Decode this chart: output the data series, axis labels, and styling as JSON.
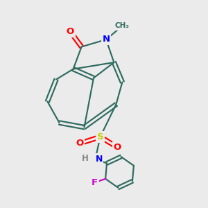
{
  "background_color": "#ebebeb",
  "bond_color": "#2d6b5e",
  "atom_colors": {
    "O": "#ff0000",
    "N": "#0000ff",
    "S": "#cccc00",
    "F": "#cc00cc",
    "C": "#2d6b5e",
    "H": "#888888"
  },
  "figsize": [
    3.0,
    3.0
  ],
  "dpi": 100
}
